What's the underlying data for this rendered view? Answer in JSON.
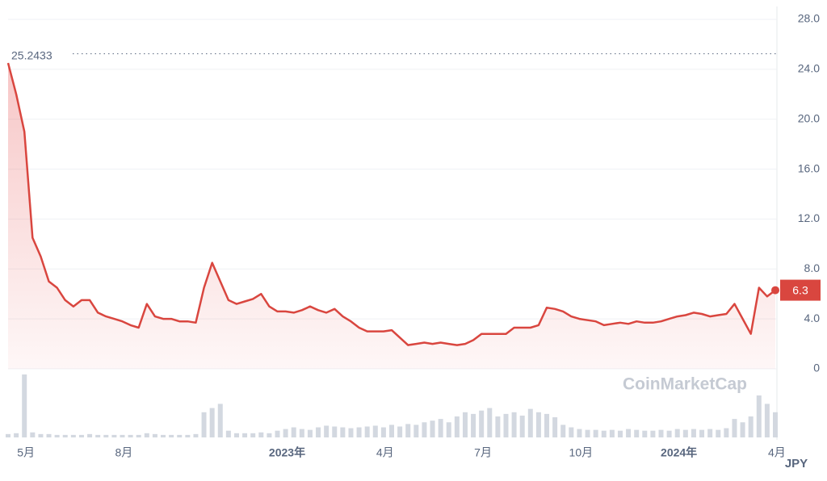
{
  "chart_data": {
    "type": "line",
    "categories": [
      null,
      "5月",
      null,
      null,
      null,
      null,
      null,
      null,
      null,
      null,
      null,
      null,
      null,
      "8月",
      null,
      null,
      null,
      null,
      null,
      null,
      null,
      null,
      null,
      null,
      null,
      null,
      null,
      null,
      null,
      null,
      null,
      null,
      null,
      "2023年",
      null,
      null,
      null,
      null,
      null,
      null,
      null,
      null,
      null,
      null,
      null,
      "4月",
      null,
      null,
      null,
      null,
      null,
      null,
      null,
      null,
      null,
      null,
      null,
      "7月",
      null,
      null,
      null,
      null,
      null,
      null,
      null,
      null,
      null,
      null,
      null,
      "10月",
      null,
      null,
      null,
      null,
      null,
      null,
      null,
      null,
      null,
      null,
      null,
      "2024年",
      null,
      null,
      null,
      null,
      null,
      null,
      null,
      null,
      null,
      null,
      null,
      "4月",
      null
    ],
    "series": [
      {
        "color": "#d9463f",
        "values": [
          24.5,
          22,
          19,
          10.5,
          9,
          7,
          6.5,
          5.5,
          5,
          5.5,
          5.5,
          4.5,
          4.2,
          4,
          3.8,
          3.5,
          3.3,
          5.2,
          4.2,
          4,
          4,
          3.8,
          3.8,
          3.7,
          6.5,
          8.5,
          7,
          5.5,
          5.2,
          5.4,
          5.6,
          6,
          5,
          4.6,
          4.6,
          4.5,
          4.7,
          5,
          4.7,
          4.5,
          4.8,
          4.2,
          3.8,
          3.3,
          3,
          3,
          3,
          3.1,
          2.5,
          1.9,
          2,
          2.1,
          2,
          2.1,
          2,
          1.9,
          2,
          2.3,
          2.8,
          2.8,
          2.8,
          2.8,
          3.3,
          3.3,
          3.3,
          3.5,
          4.9,
          4.8,
          4.6,
          4.2,
          4,
          3.9,
          3.8,
          3.5,
          3.6,
          3.7,
          3.6,
          3.8,
          3.7,
          3.7,
          3.8,
          4,
          4.2,
          4.3,
          4.5,
          4.4,
          4.2,
          4.3,
          4.4,
          5.2,
          4,
          2.8,
          6.5,
          5.8,
          6.3
        ]
      }
    ],
    "volume": {
      "color": "#d3d8e0",
      "values": [
        4,
        5,
        75,
        6,
        4,
        4,
        3,
        3,
        3,
        3,
        4,
        3,
        3,
        3,
        3,
        3,
        3,
        5,
        4,
        3,
        3,
        3,
        3,
        4,
        30,
        35,
        40,
        8,
        5,
        5,
        5,
        6,
        5,
        8,
        10,
        12,
        10,
        9,
        12,
        14,
        13,
        12,
        11,
        12,
        13,
        14,
        12,
        15,
        13,
        16,
        15,
        18,
        20,
        22,
        18,
        25,
        30,
        28,
        32,
        35,
        25,
        28,
        30,
        26,
        34,
        30,
        28,
        24,
        15,
        12,
        10,
        9,
        9,
        8,
        9,
        8,
        10,
        9,
        8,
        8,
        9,
        8,
        10,
        9,
        10,
        9,
        10,
        9,
        11,
        22,
        18,
        25,
        50,
        40,
        30
      ]
    },
    "ylim": [
      0,
      28
    ],
    "yticks": [
      0,
      {
        "value": 4,
        "label": "4.0"
      },
      {
        "value": 8,
        "label": "8.0"
      },
      {
        "value": 12,
        "label": "12.0"
      },
      {
        "value": 16,
        "label": "16.0"
      },
      {
        "value": 20,
        "label": "20.0"
      },
      {
        "value": 24,
        "label": "24.0"
      },
      {
        "value": 28,
        "label": "28.0"
      }
    ],
    "grid": true,
    "high_line": {
      "value": 25.2433,
      "label": "25.2433"
    },
    "current_price": {
      "value": 6.3,
      "label": "6.3"
    },
    "currency": "JPY",
    "watermark": "CoinMarketCap"
  }
}
